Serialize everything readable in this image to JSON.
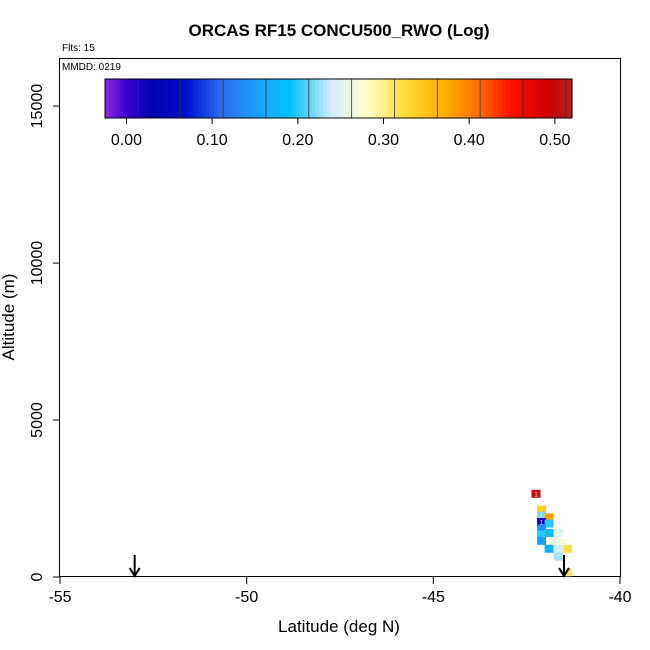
{
  "chart_data": {
    "type": "heatmap",
    "title": "ORCAS RF15 CONCU500_RWO (Log)",
    "flights_label": "Flts: 15",
    "date_label": "MMDD: 0219",
    "xlabel": "Latitude (deg N)",
    "ylabel": "Altitude (m)",
    "xlim": [
      -55,
      -40
    ],
    "ylim": [
      0,
      16500
    ],
    "x_ticks": [
      -55,
      -50,
      -45,
      -40
    ],
    "x_tick_labels": [
      "-55",
      "-50",
      "-45",
      "-40"
    ],
    "y_ticks": [
      0,
      5000,
      10000,
      15000
    ],
    "y_tick_labels": [
      "0",
      "5000",
      "10000",
      "15000"
    ],
    "colorbar": {
      "range": [
        -0.025,
        0.52
      ],
      "ticks": [
        0.0,
        0.1,
        0.2,
        0.3,
        0.4,
        0.5
      ],
      "tick_labels": [
        "0.00",
        "0.10",
        "0.20",
        "0.30",
        "0.40",
        "0.50"
      ],
      "stops": [
        {
          "v": -0.025,
          "color": "#8a2be2"
        },
        {
          "v": 0.0,
          "color": "#3a00d0"
        },
        {
          "v": 0.03,
          "color": "#0000b0"
        },
        {
          "v": 0.07,
          "color": "#0010d0"
        },
        {
          "v": 0.11,
          "color": "#2a6cf0"
        },
        {
          "v": 0.16,
          "color": "#1aa8ff"
        },
        {
          "v": 0.19,
          "color": "#00bfff"
        },
        {
          "v": 0.24,
          "color": "#d6ecff"
        },
        {
          "v": 0.28,
          "color": "#ffffcc"
        },
        {
          "v": 0.32,
          "color": "#ffe040"
        },
        {
          "v": 0.37,
          "color": "#ffb000"
        },
        {
          "v": 0.41,
          "color": "#ff7000"
        },
        {
          "v": 0.45,
          "color": "#ff1000"
        },
        {
          "v": 0.49,
          "color": "#d00000"
        },
        {
          "v": 0.52,
          "color": "#b02020"
        }
      ]
    },
    "cells": [
      {
        "lat": -42.25,
        "alt": 2650,
        "value": 0.5,
        "label": "1"
      },
      {
        "lat": -42.1,
        "alt": 2150,
        "value": 0.34
      },
      {
        "lat": -42.1,
        "alt": 1950,
        "value": 0.22,
        "label": "1"
      },
      {
        "lat": -41.9,
        "alt": 1900,
        "value": 0.38
      },
      {
        "lat": -42.1,
        "alt": 1750,
        "value": 0.02,
        "label": "1"
      },
      {
        "lat": -41.9,
        "alt": 1700,
        "value": 0.2
      },
      {
        "lat": -42.1,
        "alt": 1550,
        "value": 0.14
      },
      {
        "lat": -41.9,
        "alt": 1400,
        "value": 0.18
      },
      {
        "lat": -41.65,
        "alt": 1400,
        "value": 0.25
      },
      {
        "lat": -42.1,
        "alt": 1350,
        "value": 0.2
      },
      {
        "lat": -42.1,
        "alt": 1150,
        "value": 0.15
      },
      {
        "lat": -41.8,
        "alt": 1150,
        "value": 0.26
      },
      {
        "lat": -41.55,
        "alt": 1100,
        "value": 0.27
      },
      {
        "lat": -41.9,
        "alt": 900,
        "value": 0.17
      },
      {
        "lat": -41.65,
        "alt": 900,
        "value": 0.24
      },
      {
        "lat": -41.4,
        "alt": 900,
        "value": 0.32
      },
      {
        "lat": -41.65,
        "alt": 650,
        "value": 0.23
      },
      {
        "lat": -41.4,
        "alt": 150,
        "value": 0.31
      }
    ],
    "arrows": [
      {
        "lat": -53.0,
        "alt_top": 700,
        "alt_bottom": 0
      },
      {
        "lat": -41.5,
        "alt_top": 700,
        "alt_bottom": 0
      }
    ]
  }
}
